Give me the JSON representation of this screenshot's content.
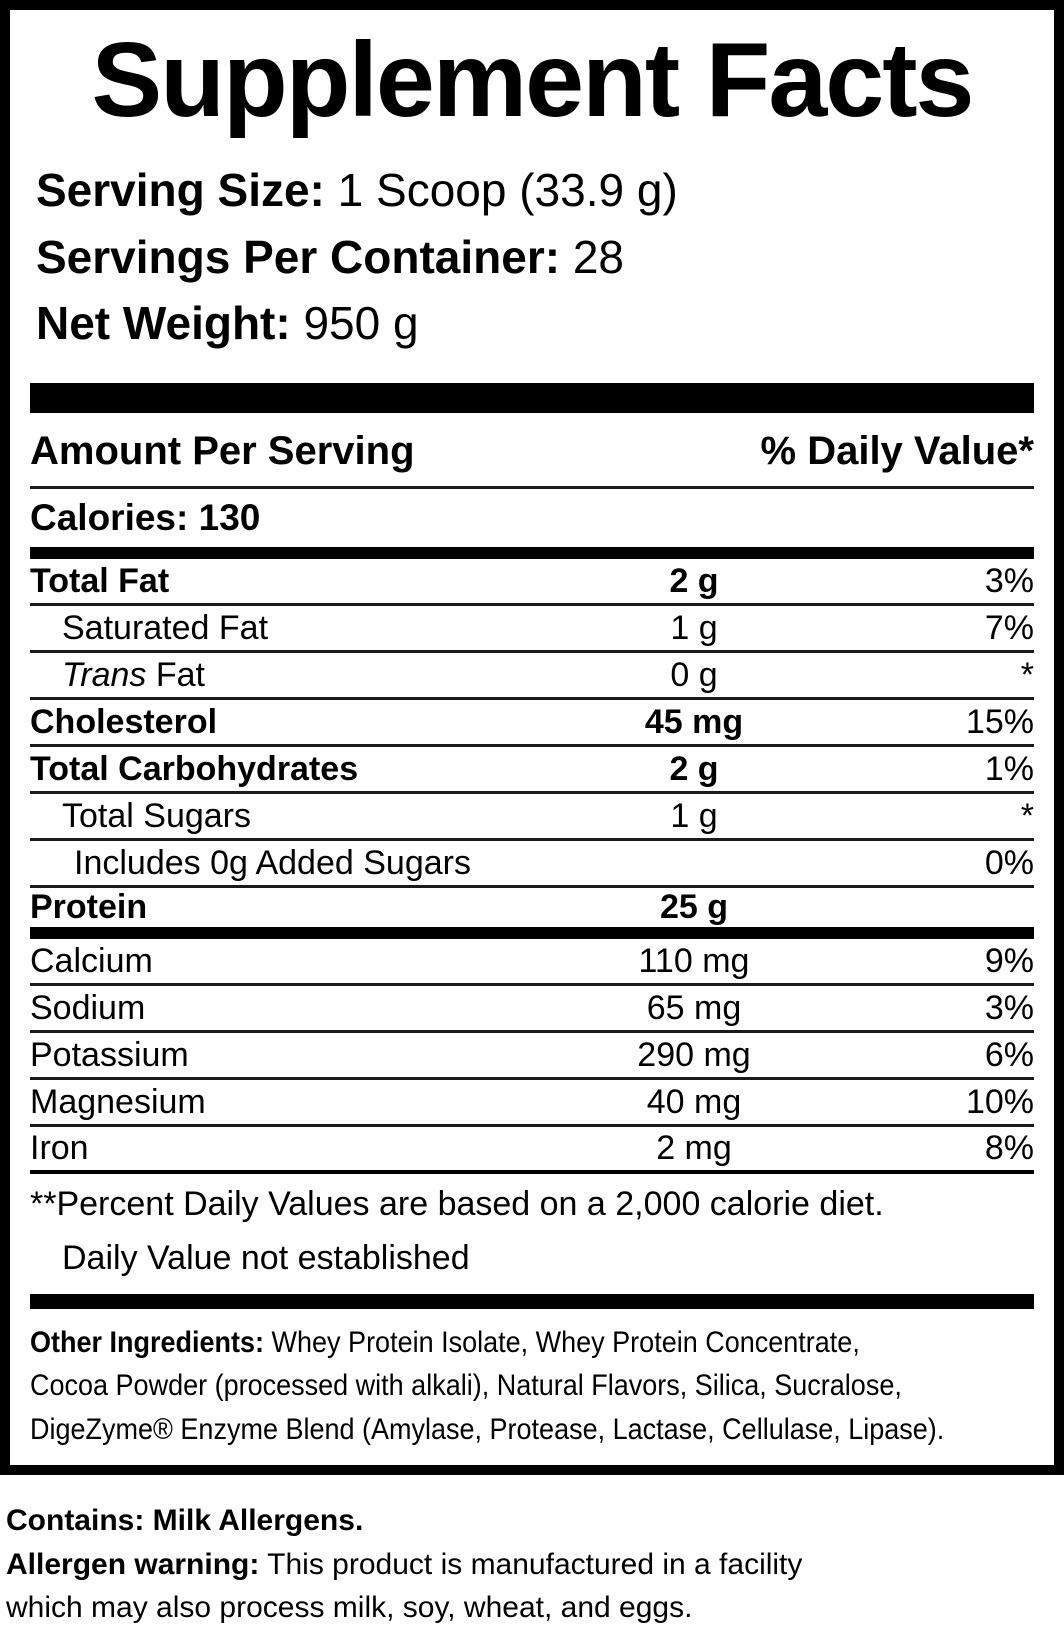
{
  "title": "Supplement Facts",
  "serving_info": {
    "serving_size_label": "Serving Size:",
    "serving_size_value": "1 Scoop (33.9 g)",
    "servings_per_container_label": "Servings Per Container:",
    "servings_per_container_value": "28",
    "net_weight_label": "Net Weight:",
    "net_weight_value": "950 g"
  },
  "table": {
    "header": {
      "amount_col": "Amount Per Serving",
      "dv_col": "% Daily Value*"
    },
    "calories": "Calories: 130",
    "rows": [
      {
        "label": "Total Fat",
        "amount": "2 g",
        "dv": "3%"
      },
      {
        "label": "Saturated Fat",
        "amount": "1 g",
        "dv": "7%"
      },
      {
        "label_italic": "Trans",
        "label": "Fat",
        "amount": "0 g",
        "dv": "*"
      },
      {
        "label": "Cholesterol",
        "amount": "45 mg",
        "dv": "15%"
      },
      {
        "label": "Total Carbohydrates",
        "amount": "2 g",
        "dv": "1%"
      },
      {
        "label": "Total Sugars",
        "amount": "1 g",
        "dv": "*"
      },
      {
        "label": "Includes 0g Added Sugars",
        "amount": "",
        "dv": "0%"
      },
      {
        "label": "Protein",
        "amount": "25 g",
        "dv": ""
      },
      {
        "label": "Calcium",
        "amount": "110 mg",
        "dv": "9%"
      },
      {
        "label": "Sodium",
        "amount": "65 mg",
        "dv": "3%"
      },
      {
        "label": "Potassium",
        "amount": "290 mg",
        "dv": "6%"
      },
      {
        "label": "Magnesium",
        "amount": "40 mg",
        "dv": "10%"
      },
      {
        "label": "Iron",
        "amount": "2 mg",
        "dv": "8%"
      }
    ],
    "footnotes": [
      "**Percent Daily Values are based on a 2,000 calorie diet.",
      "Daily Value not established"
    ]
  },
  "other_ingredients": {
    "label": "Other Ingredients:",
    "line1": "Whey Protein Isolate, Whey Protein Concentrate,",
    "line2": "Cocoa Powder (processed with alkali), Natural Flavors, Silica, Sucralose,",
    "line3": "DigeZyme® Enzyme Blend (Amylase, Protease, Lactase, Cellulase, Lipase)."
  },
  "footer": {
    "contains": "Contains: Milk Allergens.",
    "allergen_label": "Allergen warning:",
    "allergen_line1": "This product is manufactured in a facility",
    "allergen_line2": "which may also process milk, soy, wheat, and eggs."
  },
  "colors": {
    "text": "#000000",
    "background": "#ffffff",
    "rule": "#1a1a1a"
  }
}
